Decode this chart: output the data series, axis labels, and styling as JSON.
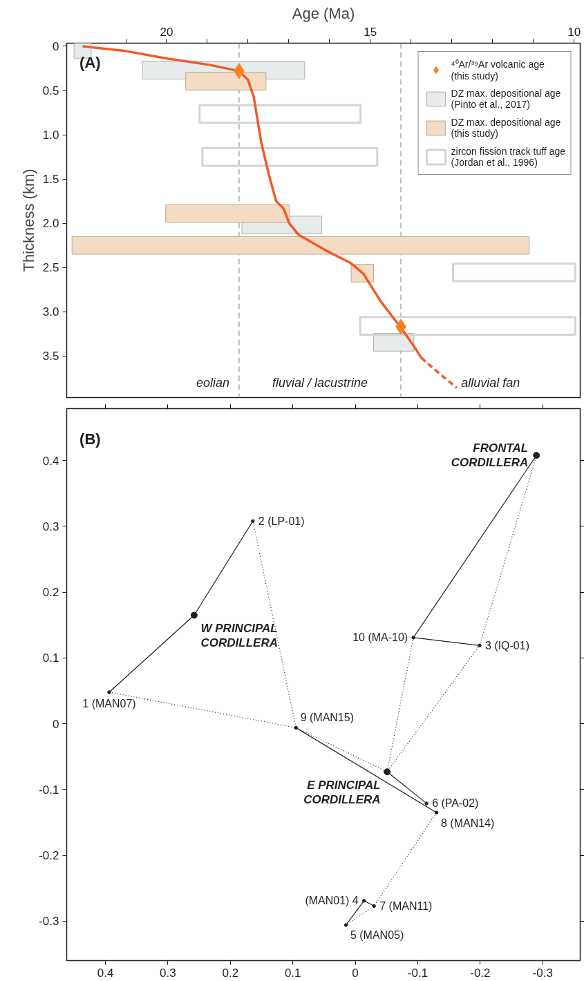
{
  "chart_data": [
    {
      "type": "bar",
      "orientation": "horizontal",
      "xlabel": "Age (Ma)",
      "ylabel": "Thickness (km)",
      "xlim": [
        22.45,
        9.85
      ],
      "ylim": [
        3.97,
        -0.035
      ],
      "xticks": [
        {
          "value": 21,
          "label": null
        },
        20,
        {
          "value": 19,
          "label": null
        },
        {
          "value": 18,
          "label": null
        },
        {
          "value": 17,
          "label": null
        },
        {
          "value": 16,
          "label": null
        },
        15,
        {
          "value": 14,
          "label": null
        },
        {
          "value": 13,
          "label": null
        },
        {
          "value": 12,
          "label": null
        },
        {
          "value": 11,
          "label": null
        },
        10
      ],
      "yticks": [
        0,
        0.5,
        {
          "value": 1,
          "label": "1.0"
        },
        1.5,
        {
          "value": 2,
          "label": "2.0"
        },
        2.5,
        {
          "value": 3,
          "label": "3.0"
        },
        3.5
      ],
      "legend": "top right",
      "ref_lines": [
        {
          "axis": "x",
          "value": 18.22,
          "color": "#9a9a9a",
          "line_style": "dashed"
        },
        {
          "axis": "x",
          "value": 14.25,
          "color": "#9a9a9a",
          "line_style": "dashed"
        }
      ],
      "annotations": [
        "(A)",
        "eolian",
        "fluvial / lacustrine",
        "alluvial fan"
      ],
      "series": [
        {
          "type": "scatter",
          "name": "⁴⁰Ar/³⁹Ar volcanic age\n(this study)",
          "color": "#f58220",
          "marker": "diamond",
          "x": [
            0.28,
            3.17
          ],
          "values": [
            18.22,
            14.25
          ]
        },
        {
          "name": "DZ max. depositional age\n(Pinto et al., 2017)",
          "color": "#e8ebeb",
          "x": [
            0.035,
            0.27,
            2.02,
            3.345
          ],
          "base": [
            22.27,
            20.59,
            18.15,
            14.92
          ],
          "values": [
            -0.42,
            -3.98,
            -1.96,
            -0.99
          ]
        },
        {
          "name": "DZ max. depositional age\n(this study)",
          "color": "#f3dcc2",
          "x": [
            0.395,
            1.89,
            2.25,
            2.565
          ],
          "base": [
            19.53,
            20.02,
            22.32,
            15.47
          ],
          "values": [
            -1.97,
            -3.04,
            -11.22,
            -0.55
          ]
        },
        {
          "name": "zircon fission track tuff age\n(Jordan et al., 1996)",
          "color": "#d4d4d4",
          "line_style": "solid",
          "x": [
            0.765,
            1.25,
            2.555,
            3.16
          ],
          "base": [
            19.19,
            19.12,
            12.97,
            15.25
          ],
          "values": [
            -3.95,
            -4.29,
            -3.0,
            -5.28
          ]
        },
        {
          "type": "line",
          "color": "#f15a29",
          "x": [
            0,
            0.05,
            0.14,
            0.21,
            0.28,
            0.38,
            0.57,
            1.08,
            1.45,
            1.75,
            1.83,
            2.0,
            2.13,
            2.3,
            2.45,
            2.57,
            2.88,
            3.18,
            3.39,
            3.52
          ],
          "values": [
            22.06,
            21.05,
            19.96,
            18.95,
            18.22,
            18.0,
            17.86,
            17.68,
            17.49,
            17.31,
            17.13,
            16.99,
            16.76,
            16.12,
            15.48,
            15.17,
            14.75,
            14.25,
            13.93,
            13.75
          ]
        },
        {
          "type": "line",
          "color": "#f15a29",
          "line_style": "dashed",
          "x": [
            3.52,
            3.7,
            3.86
          ],
          "values": [
            13.75,
            13.3,
            12.88
          ]
        }
      ]
    },
    {
      "type": "scatter",
      "xlim": [
        0.462,
        -0.36
      ],
      "ylim": [
        -0.36,
        0.479
      ],
      "xticks": [
        0.4,
        0.3,
        0.2,
        0.1,
        0,
        -0.1,
        -0.2,
        -0.3
      ],
      "yticks": [
        -0.3,
        -0.2,
        -0.1,
        0,
        0.1,
        0.2,
        0.3,
        0.4
      ],
      "annotations": [
        "(B)",
        {
          "text": "1 (MAN07)",
          "x": 0.394,
          "y": 0.048
        },
        {
          "text": "2 (LP-01)",
          "x": 0.164,
          "y": 0.308
        },
        {
          "text": "3 (IQ-01)",
          "x": -0.199,
          "y": 0.119
        },
        {
          "text": "(MAN01) 4",
          "x": -0.014,
          "y": -0.269
        },
        {
          "text": "5 (MAN05)",
          "x": 0.015,
          "y": -0.306
        },
        {
          "text": "6 (PA-02)",
          "x": -0.114,
          "y": -0.121
        },
        {
          "text": "7 (MAN11)",
          "x": -0.03,
          "y": -0.277
        },
        {
          "text": "8 (MAN14)",
          "x": -0.13,
          "y": -0.135
        },
        {
          "text": "9 (MAN15)",
          "x": 0.095,
          "y": -0.006
        },
        {
          "text": "10 (MA-10)",
          "x": -0.093,
          "y": 0.131
        }
      ],
      "series": [
        {
          "type": "line",
          "color": "#231f20",
          "line_style": "solid",
          "x": [
            0.394,
            0.258,
            0.164
          ],
          "values": [
            0.048,
            0.165,
            0.308
          ]
        },
        {
          "type": "line",
          "color": "#231f20",
          "line_style": "solid",
          "x": [
            -0.29,
            -0.093,
            -0.199
          ],
          "values": [
            0.408,
            0.131,
            0.119
          ]
        },
        {
          "type": "line",
          "color": "#231f20",
          "line_style": "solid",
          "x": [
            0.095,
            -0.13
          ],
          "values": [
            -0.006,
            -0.135
          ]
        },
        {
          "type": "line",
          "color": "#231f20",
          "line_style": "solid",
          "x": [
            -0.051,
            -0.114
          ],
          "values": [
            -0.073,
            -0.121
          ]
        },
        {
          "type": "line",
          "color": "#231f20",
          "line_style": "solid",
          "x": [
            0.015,
            -0.014,
            -0.03
          ],
          "values": [
            -0.306,
            -0.269,
            -0.277
          ]
        },
        {
          "type": "line",
          "color": "#231f20",
          "line_style": "dotted",
          "x": [
            0.394,
            0.095,
            0.164
          ],
          "values": [
            0.048,
            -0.006,
            0.308
          ]
        },
        {
          "type": "line",
          "color": "#231f20",
          "line_style": "dotted",
          "x": [
            0.095,
            -0.051
          ],
          "values": [
            -0.006,
            -0.073
          ]
        },
        {
          "type": "line",
          "color": "#231f20",
          "line_style": "dotted",
          "x": [
            -0.093,
            -0.051,
            -0.199,
            -0.29
          ],
          "values": [
            0.131,
            -0.073,
            0.119,
            0.408
          ]
        },
        {
          "type": "line",
          "color": "#231f20",
          "line_style": "dotted",
          "x": [
            -0.13,
            -0.03,
            0.015
          ],
          "values": [
            -0.135,
            -0.277,
            -0.306
          ]
        },
        {
          "color": "#231f20",
          "marker": "circle",
          "x": [
            0.394,
            0.164,
            -0.199,
            -0.014,
            0.015,
            -0.114,
            -0.03,
            -0.13,
            0.095,
            -0.093
          ],
          "values": [
            0.048,
            0.308,
            0.119,
            -0.269,
            -0.306,
            -0.121,
            -0.277,
            -0.135,
            -0.006,
            0.131
          ]
        },
        {
          "name": "W PRINCIPAL\nCORDILLERA",
          "color": "#231f20",
          "marker": "circle",
          "x": [
            0.258
          ],
          "values": [
            0.165
          ]
        },
        {
          "name": "FRONTAL\nCORDILLERA",
          "color": "#231f20",
          "marker": "circle",
          "x": [
            -0.29
          ],
          "values": [
            0.408
          ]
        },
        {
          "name": "E PRINCIPAL\nCORDILLERA",
          "color": "#231f20",
          "marker": "circle",
          "x": [
            -0.051
          ],
          "values": [
            -0.073
          ]
        }
      ]
    }
  ]
}
